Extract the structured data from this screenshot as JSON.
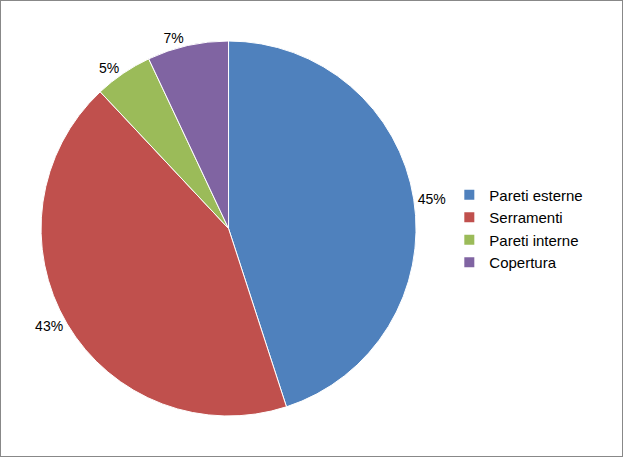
{
  "chart_data": {
    "type": "pie",
    "categories": [
      "Pareti esterne",
      "Serramenti",
      "Pareti interne",
      "Copertura"
    ],
    "values": [
      45,
      43,
      5,
      7
    ],
    "value_labels": [
      "45%",
      "43%",
      "5%",
      "7%"
    ],
    "colors": [
      "#4f81bd",
      "#c0504d",
      "#9bbb59",
      "#8064a2"
    ],
    "data_labels": true,
    "legend": "right"
  }
}
